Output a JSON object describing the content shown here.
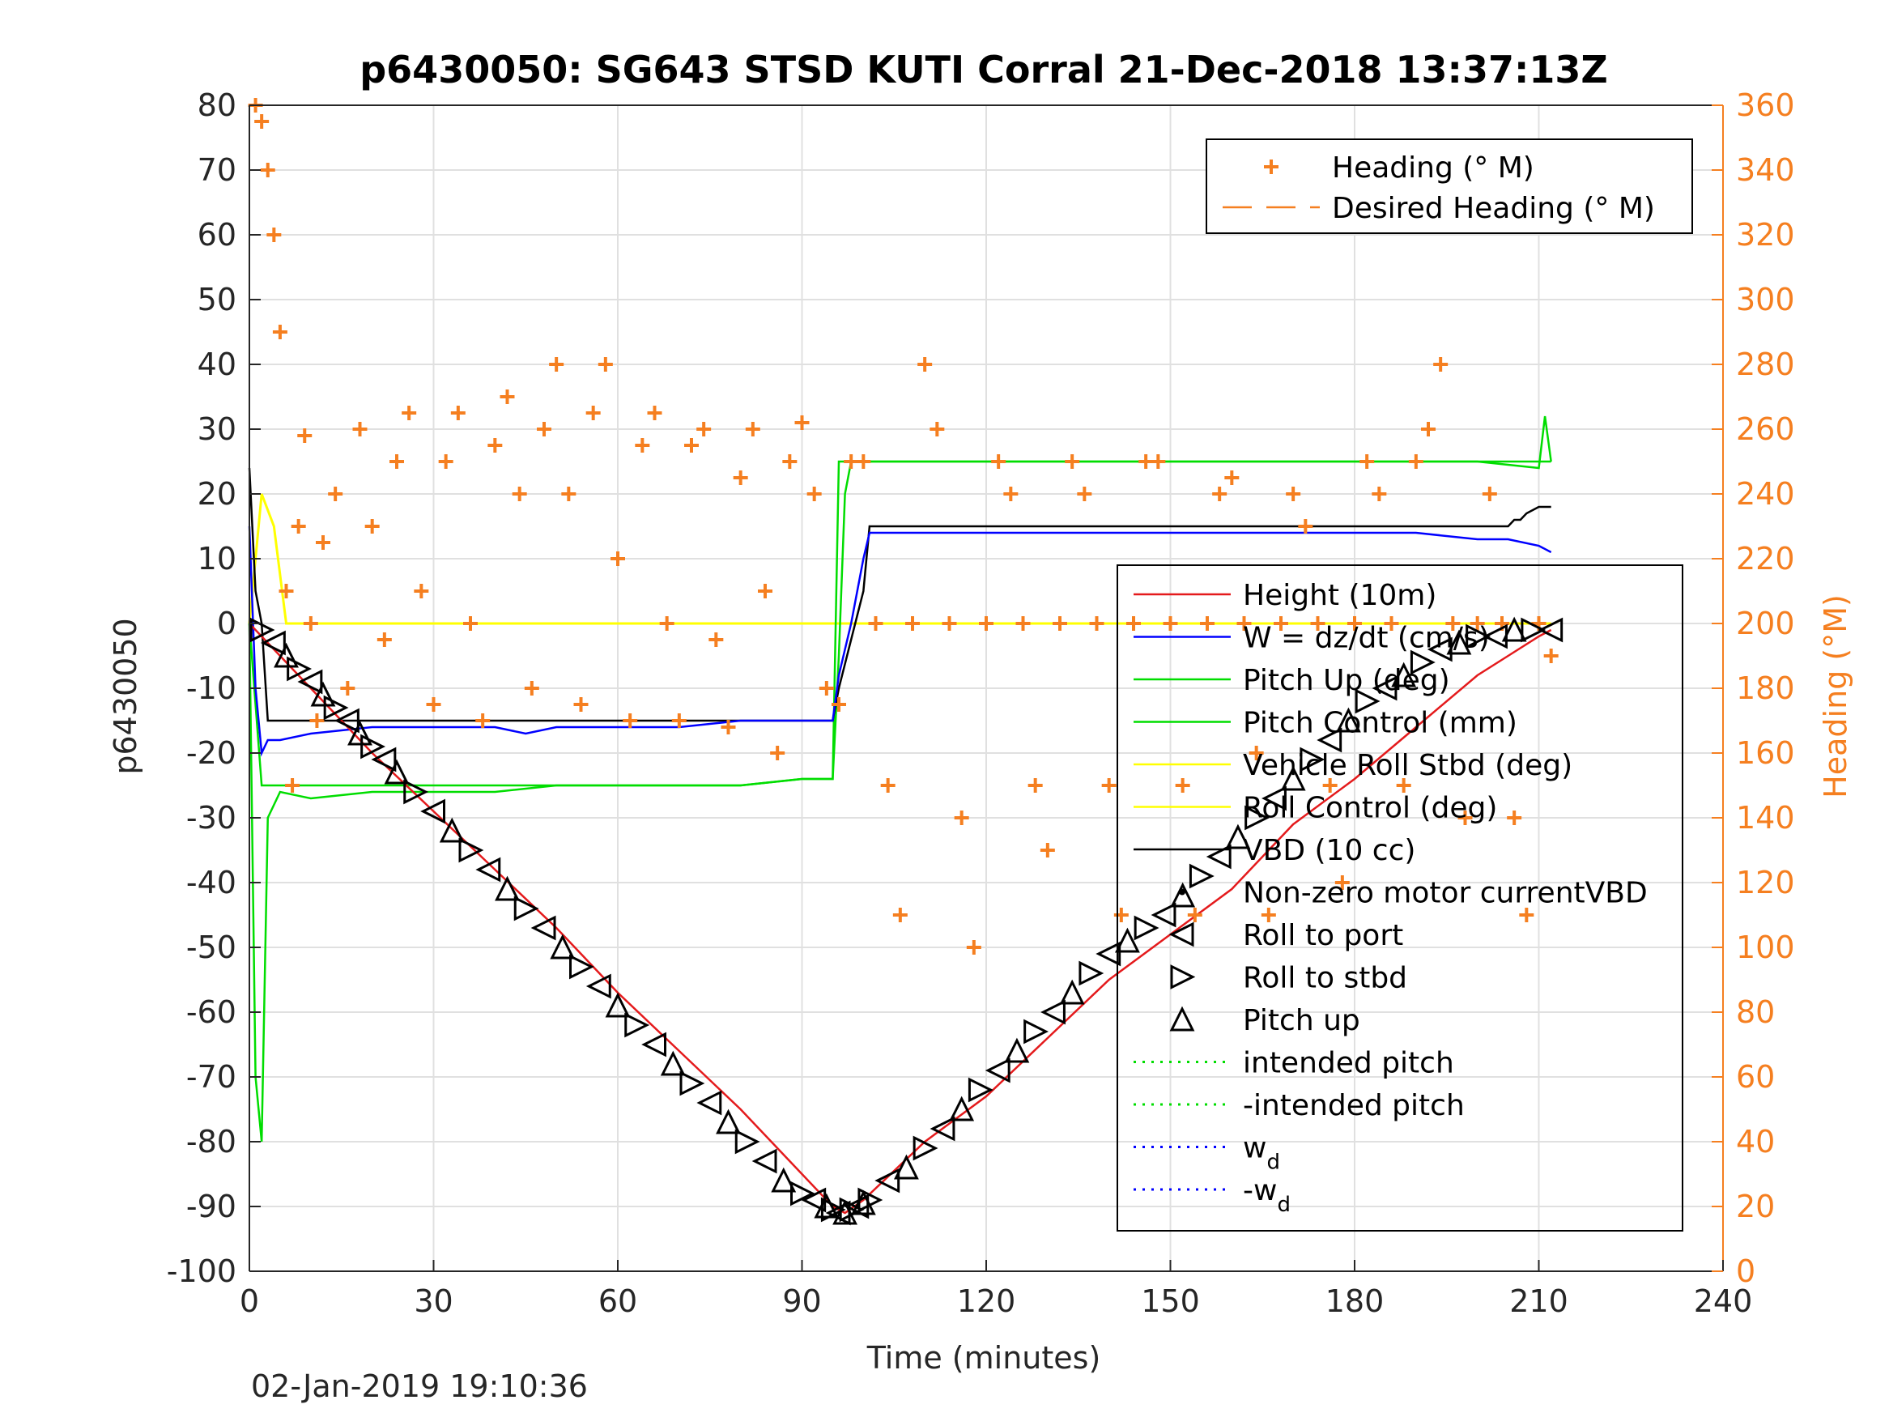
{
  "chart_data": {
    "type": "line",
    "title": "p6430050: SG643 STSD KUTI Corral 21-Dec-2018 13:37:13Z",
    "xlabel": "Time (minutes)",
    "ylabel": "p6430050",
    "y2label": "Heading (°M)",
    "xlim": [
      0,
      240
    ],
    "ylim": [
      -100,
      80
    ],
    "y2lim": [
      0,
      360
    ],
    "xticks": [
      0,
      30,
      60,
      90,
      120,
      150,
      180,
      210,
      240
    ],
    "yticks": [
      -100,
      -90,
      -80,
      -70,
      -60,
      -50,
      -40,
      -30,
      -20,
      -10,
      0,
      10,
      20,
      30,
      40,
      50,
      60,
      70,
      80
    ],
    "y2ticks": [
      0,
      20,
      40,
      60,
      80,
      100,
      120,
      140,
      160,
      180,
      200,
      220,
      240,
      260,
      280,
      300,
      320,
      340,
      360
    ],
    "grid": true,
    "colors": {
      "axis_left": "#262626",
      "axis_right": "#f57f20",
      "height": "#e41a1c",
      "w": "#0000ff",
      "pitch": "#00dd00",
      "roll": "#ffff00",
      "vbd": "#000000",
      "heading": "#f57f20"
    },
    "legend_heading": {
      "placement": "top-right",
      "entries": [
        {
          "name": "Heading (° M)",
          "marker": "plus",
          "color": "#f57f20"
        },
        {
          "name": "Desired Heading (° M)",
          "marker": "dash",
          "color": "#f57f20"
        }
      ]
    },
    "legend_main": {
      "placement": "right",
      "entries": [
        {
          "name": "Height (10m)",
          "style": "line",
          "color": "#e41a1c"
        },
        {
          "name": "W = dz/dt (cm/s)",
          "style": "line",
          "color": "#0000ff"
        },
        {
          "name": "Pitch Up (deg)",
          "style": "line",
          "color": "#00dd00"
        },
        {
          "name": "Pitch Control (mm)",
          "style": "line",
          "color": "#00dd00"
        },
        {
          "name": "Vehicle Roll Stbd (deg)",
          "style": "line",
          "color": "#ffff00"
        },
        {
          "name": "Roll Control (deg)",
          "style": "line",
          "color": "#ffff00"
        },
        {
          "name": "VBD (10 cc)",
          "style": "line",
          "color": "#000000"
        },
        {
          "name": "Non-zero motor currentVBD",
          "style": "dot",
          "color": "#000000"
        },
        {
          "name": "Roll to port",
          "style": "tri-left",
          "color": "#000000"
        },
        {
          "name": "Roll to stbd",
          "style": "tri-right",
          "color": "#000000"
        },
        {
          "name": "Pitch up",
          "style": "tri-up",
          "color": "#000000"
        },
        {
          "name": "intended pitch",
          "style": "dotted",
          "color": "#00dd00"
        },
        {
          "name": "-intended pitch",
          "style": "dotted",
          "color": "#00dd00"
        },
        {
          "name": "w",
          "sub": "d",
          "style": "dotted",
          "color": "#0000ff"
        },
        {
          "name": "-w",
          "sub": "d",
          "style": "dotted",
          "color": "#0000ff"
        }
      ]
    },
    "series": [
      {
        "key": "height",
        "axis": "left",
        "x": [
          0,
          2,
          10,
          20,
          30,
          40,
          50,
          60,
          70,
          80,
          90,
          95,
          97,
          100,
          110,
          120,
          130,
          140,
          150,
          160,
          170,
          180,
          190,
          200,
          205,
          210,
          212
        ],
        "y": [
          0,
          -2,
          -10,
          -20,
          -29,
          -38,
          -47,
          -57,
          -66,
          -75,
          -85,
          -90,
          -91,
          -89,
          -80,
          -73,
          -64,
          -55,
          -48,
          -41,
          -31,
          -24,
          -16,
          -8,
          -5,
          -2,
          -1
        ]
      },
      {
        "key": "w",
        "axis": "left",
        "x": [
          0,
          1,
          2,
          3,
          5,
          10,
          20,
          30,
          40,
          45,
          50,
          60,
          70,
          80,
          85,
          90,
          95,
          96,
          98,
          100,
          101,
          110,
          120,
          130,
          140,
          150,
          160,
          170,
          180,
          190,
          200,
          205,
          210,
          212
        ],
        "y": [
          15,
          -10,
          -20,
          -18,
          -18,
          -17,
          -16,
          -16,
          -16,
          -17,
          -16,
          -16,
          -16,
          -15,
          -15,
          -15,
          -15,
          -8,
          0,
          10,
          14,
          14,
          14,
          14,
          14,
          14,
          14,
          14,
          14,
          14,
          13,
          13,
          12,
          11
        ]
      },
      {
        "key": "pitch_up",
        "axis": "left",
        "x": [
          0,
          1,
          2,
          3,
          5,
          10,
          20,
          30,
          40,
          50,
          60,
          70,
          80,
          90,
          95,
          96,
          97,
          98,
          100,
          110,
          120,
          130,
          140,
          150,
          160,
          170,
          180,
          190,
          200,
          210,
          211,
          212
        ],
        "y": [
          0,
          -70,
          -80,
          -30,
          -26,
          -27,
          -26,
          -26,
          -26,
          -25,
          -25,
          -25,
          -25,
          -24,
          -24,
          -5,
          20,
          25,
          25,
          25,
          25,
          25,
          25,
          25,
          25,
          25,
          25,
          25,
          25,
          24,
          32,
          25
        ]
      },
      {
        "key": "pitch_control",
        "axis": "left",
        "x": [
          0,
          2,
          3,
          10,
          20,
          40,
          60,
          80,
          90,
          95,
          96,
          100,
          120,
          140,
          160,
          180,
          200,
          210,
          212
        ],
        "y": [
          0,
          -25,
          -25,
          -25,
          -25,
          -25,
          -25,
          -25,
          -24,
          -24,
          25,
          25,
          25,
          25,
          25,
          25,
          25,
          25,
          25
        ]
      },
      {
        "key": "roll",
        "axis": "left",
        "x": [
          0,
          2,
          4,
          6,
          10,
          20,
          30,
          40,
          50,
          60,
          70,
          80,
          90,
          95,
          100,
          110,
          120,
          130,
          140,
          150,
          160,
          170,
          180,
          190,
          200,
          210,
          212
        ],
        "y": [
          0,
          20,
          15,
          0,
          0,
          0,
          0,
          0,
          0,
          0,
          0,
          0,
          0,
          0,
          0,
          0,
          0,
          0,
          0,
          0,
          0,
          0,
          0,
          0,
          0,
          0,
          0
        ]
      },
      {
        "key": "vbd",
        "axis": "left",
        "x": [
          0,
          1,
          2,
          3,
          10,
          20,
          40,
          60,
          80,
          90,
          95,
          96,
          100,
          101,
          120,
          140,
          160,
          180,
          200,
          205,
          206,
          207,
          208,
          210,
          212
        ],
        "y": [
          24,
          5,
          0,
          -15,
          -15,
          -15,
          -15,
          -15,
          -15,
          -15,
          -15,
          -10,
          5,
          15,
          15,
          15,
          15,
          15,
          15,
          15,
          16,
          16,
          17,
          18,
          18
        ]
      },
      {
        "key": "heading",
        "axis": "right",
        "marker": "plus",
        "x": [
          1,
          2,
          3,
          4,
          5,
          6,
          7,
          8,
          9,
          10,
          11,
          12,
          14,
          16,
          18,
          20,
          22,
          24,
          26,
          28,
          30,
          32,
          34,
          36,
          38,
          40,
          42,
          44,
          46,
          48,
          50,
          52,
          54,
          56,
          58,
          60,
          62,
          64,
          66,
          68,
          70,
          72,
          74,
          76,
          78,
          80,
          82,
          84,
          86,
          88,
          90,
          92,
          94,
          96,
          98,
          100,
          102,
          104,
          106,
          108,
          110,
          112,
          114,
          116,
          118,
          120,
          122,
          124,
          126,
          128,
          130,
          132,
          134,
          136,
          138,
          140,
          142,
          144,
          146,
          148,
          150,
          152,
          154,
          156,
          158,
          160,
          162,
          164,
          166,
          168,
          170,
          172,
          174,
          176,
          178,
          180,
          182,
          184,
          186,
          188,
          190,
          192,
          194,
          196,
          198,
          200,
          202,
          204,
          206,
          208,
          210,
          212
        ],
        "y": [
          360,
          355,
          340,
          320,
          290,
          210,
          150,
          230,
          258,
          200,
          170,
          225,
          240,
          180,
          260,
          230,
          195,
          250,
          265,
          210,
          175,
          250,
          265,
          200,
          170,
          255,
          270,
          240,
          180,
          260,
          280,
          240,
          175,
          265,
          280,
          220,
          170,
          255,
          265,
          200,
          170,
          255,
          260,
          195,
          168,
          245,
          260,
          210,
          160,
          250,
          262,
          240,
          180,
          175,
          250,
          250,
          200,
          150,
          110,
          200,
          280,
          260,
          200,
          140,
          100,
          200,
          250,
          240,
          200,
          150,
          130,
          200,
          250,
          240,
          200,
          150,
          110,
          200,
          250,
          250,
          200,
          150,
          110,
          200,
          240,
          245,
          200,
          160,
          110,
          200,
          240,
          230,
          200,
          150,
          120,
          200,
          250,
          240,
          200,
          150,
          250,
          260,
          280,
          200,
          140,
          200,
          240,
          200,
          140,
          110,
          200,
          190
        ]
      },
      {
        "key": "markers",
        "axis": "left",
        "marker": "triangles",
        "x": [
          2,
          4,
          6,
          8,
          10,
          12,
          14,
          16,
          18,
          20,
          22,
          24,
          27,
          30,
          33,
          36,
          39,
          42,
          45,
          48,
          51,
          54,
          57,
          60,
          63,
          66,
          69,
          72,
          75,
          78,
          81,
          84,
          87,
          90,
          92,
          94,
          95,
          96,
          97,
          98,
          99,
          100,
          101,
          104,
          107,
          110,
          113,
          116,
          119,
          122,
          125,
          128,
          131,
          134,
          137,
          140,
          143,
          146,
          149,
          152,
          155,
          158,
          161,
          164,
          167,
          170,
          173,
          176,
          179,
          182,
          185,
          188,
          191,
          194,
          197,
          200,
          203,
          206,
          209,
          212
        ],
        "y": [
          -1,
          -3,
          -5,
          -7,
          -9,
          -11,
          -13,
          -15,
          -17,
          -19,
          -21,
          -23,
          -26,
          -29,
          -32,
          -35,
          -38,
          -41,
          -44,
          -47,
          -50,
          -53,
          -56,
          -59,
          -62,
          -65,
          -68,
          -71,
          -74,
          -77,
          -80,
          -83,
          -86,
          -88,
          -89,
          -90,
          -90.5,
          -91,
          -91,
          -90.5,
          -90,
          -89.5,
          -89,
          -86,
          -84,
          -81,
          -78,
          -75,
          -72,
          -69,
          -66,
          -63,
          -60,
          -57,
          -54,
          -51,
          -49,
          -47,
          -45,
          -42,
          -39,
          -36,
          -33,
          -30,
          -27,
          -24,
          -21,
          -18,
          -15,
          -12,
          -10,
          -8,
          -6,
          -4,
          -3,
          -2,
          -2,
          -1,
          -1,
          -1
        ]
      }
    ]
  },
  "footer": {
    "timestamp": "02-Jan-2019 19:10:36"
  }
}
